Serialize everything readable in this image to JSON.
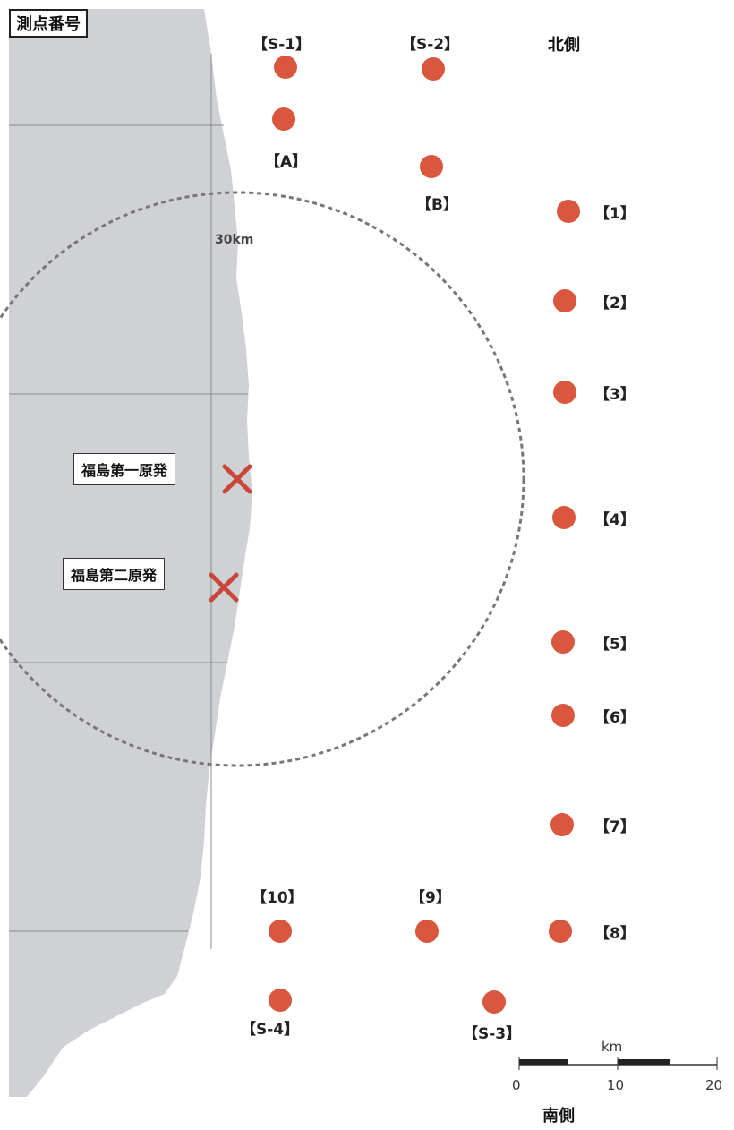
{
  "title": "測点番号",
  "direction": {
    "north": "北側",
    "south": "南側"
  },
  "radius_label": "30km",
  "plants": [
    {
      "name": "福島第一原発"
    },
    {
      "name": "福島第二原発"
    }
  ],
  "stations": [
    {
      "id": "【S-1】"
    },
    {
      "id": "【S-2】"
    },
    {
      "id": "【A】"
    },
    {
      "id": "【B】"
    },
    {
      "id": "【1】"
    },
    {
      "id": "【2】"
    },
    {
      "id": "【3】"
    },
    {
      "id": "【4】"
    },
    {
      "id": "【5】"
    },
    {
      "id": "【6】"
    },
    {
      "id": "【7】"
    },
    {
      "id": "【8】"
    },
    {
      "id": "【9】"
    },
    {
      "id": "【10】"
    },
    {
      "id": "【S-4】"
    },
    {
      "id": "【S-3】"
    }
  ],
  "scale": {
    "unit": "km",
    "ticks": [
      "0",
      "10",
      "20"
    ]
  },
  "colors": {
    "land": "#cfd1d4",
    "station": "#d9573f",
    "plant_marker": "#c9473a",
    "circle": "#777777"
  }
}
